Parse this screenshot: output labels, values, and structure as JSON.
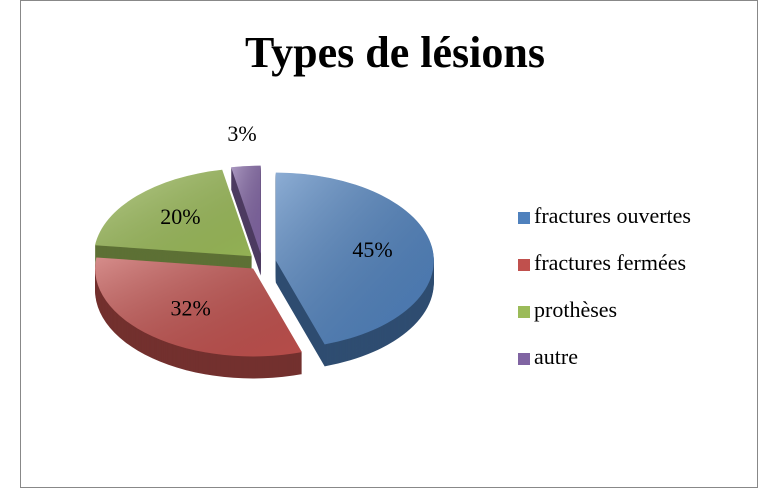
{
  "chart_data": {
    "type": "pie",
    "title": "Types de lésions",
    "categories": [
      "fractures ouvertes",
      "fractures fermées",
      "prothèses",
      "autre"
    ],
    "values": [
      45,
      32,
      20,
      3
    ],
    "value_labels": [
      "45%",
      "32%",
      "20%",
      "3%"
    ],
    "colors": [
      "#4f81bd",
      "#c0504d",
      "#9bbb59",
      "#8064a2"
    ],
    "legend": "right"
  }
}
